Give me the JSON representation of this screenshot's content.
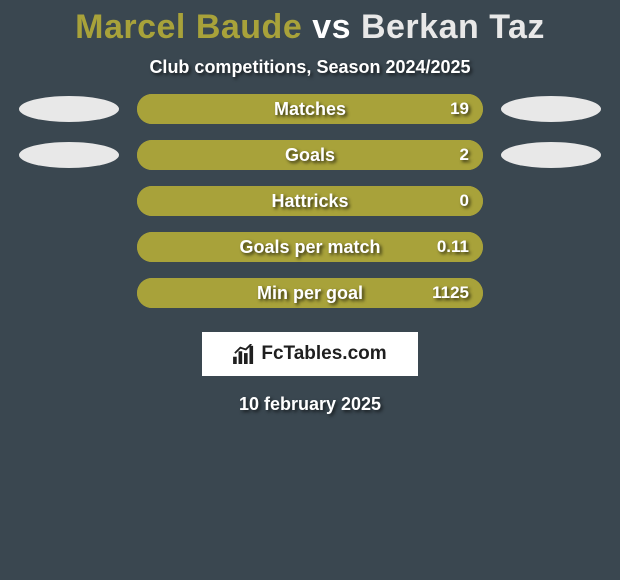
{
  "title": {
    "player1": "Marcel Baude",
    "vs": "vs",
    "player2": "Berkan Taz",
    "player1_color": "#a8a23a",
    "vs_color": "#ffffff",
    "player2_color": "#e8e8e8"
  },
  "subtitle": "Club competitions, Season 2024/2025",
  "stats": [
    {
      "label": "Matches",
      "value_right": "19",
      "left_width_pct": 0,
      "right_width_pct": 100
    },
    {
      "label": "Goals",
      "value_right": "2",
      "left_width_pct": 0,
      "right_width_pct": 100
    },
    {
      "label": "Hattricks",
      "value_right": "0",
      "left_width_pct": 0,
      "right_width_pct": 100
    },
    {
      "label": "Goals per match",
      "value_right": "0.11",
      "left_width_pct": 0,
      "right_width_pct": 100
    },
    {
      "label": "Min per goal",
      "value_right": "1125",
      "left_width_pct": 0,
      "right_width_pct": 100
    }
  ],
  "ovals": {
    "rows_with_ovals": [
      0,
      1
    ],
    "left_color": "#e8e8e8",
    "right_color": "#e8e8e8"
  },
  "bar_colors": {
    "background": "#a8a23a",
    "left_fill": "#a8a23a",
    "right_fill": "#a8a23a"
  },
  "logo": {
    "text": "FcTables.com"
  },
  "date": "10 february 2025",
  "background_color": "#3a4750"
}
